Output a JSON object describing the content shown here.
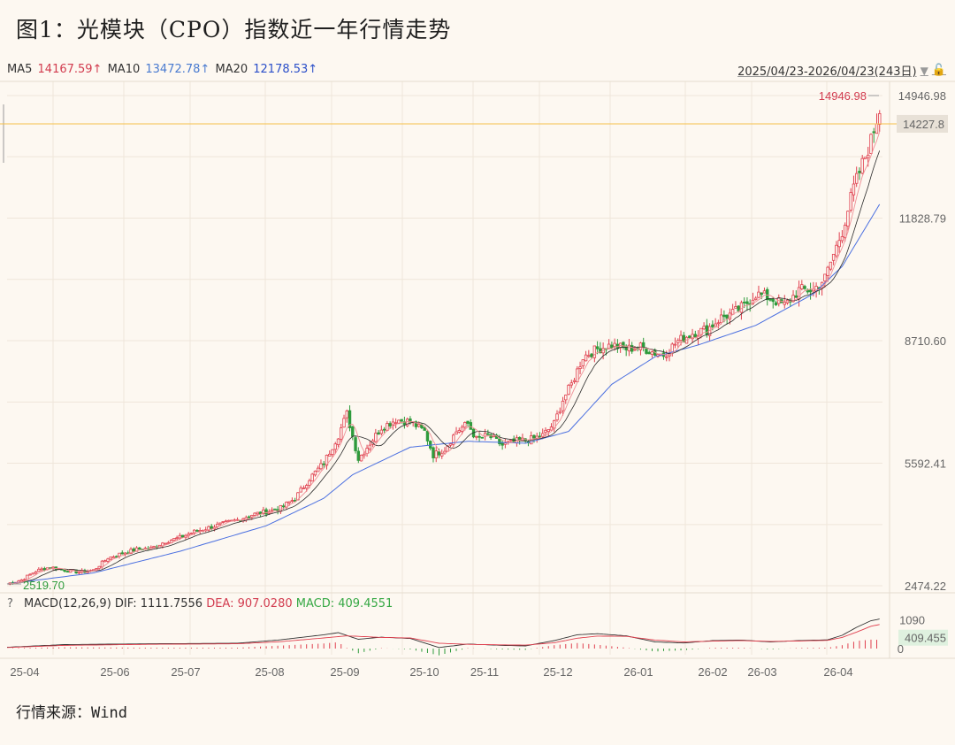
{
  "title": "图1：光模块（CPO）指数近一年行情走势",
  "legend": {
    "ma5_label": "MA5",
    "ma5_value": "14167.59↑",
    "ma10_label": "MA10",
    "ma10_value": "13472.78↑",
    "ma20_label": "MA20",
    "ma20_value": "12178.53↑"
  },
  "range_label": "2025/04/23-2026/04/23(243日)",
  "macd_legend": {
    "help": "?",
    "params": "MACD(12,26,9)",
    "dif": "DIF: 1111.7556",
    "dea": "DEA: 907.0280",
    "macd": "MACD: 409.4551"
  },
  "source": "行情来源：Wind",
  "colors": {
    "up": "#e0404f",
    "down": "#2e9b3c",
    "ma5": "#ef8f95",
    "ma10": "#2b2b2b",
    "ma20": "#4a6fe0",
    "current_line": "#f5c04a",
    "grid": "#efe6da",
    "dif_line": "#333333",
    "dea_line": "#e0404f"
  },
  "chart_data": {
    "type": "candlestick",
    "price_axis": {
      "ticks": [
        "14946.98",
        "11828.79",
        "8710.60",
        "5592.41",
        "2474.22"
      ],
      "range": [
        2474.22,
        14946.98
      ]
    },
    "x_ticks": [
      "25-04",
      "25-06",
      "25-07",
      "25-08",
      "25-09",
      "25-10",
      "25-11",
      "25-12",
      "26-01",
      "26-02",
      "26-03",
      "26-04"
    ],
    "high_label": "14946.98",
    "low_label": "2519.70",
    "current_label": "14227.8",
    "current_value": 14227.8,
    "close_path": [
      [
        0,
        2520
      ],
      [
        5,
        2620
      ],
      [
        10,
        2850
      ],
      [
        15,
        2950
      ],
      [
        20,
        2870
      ],
      [
        25,
        2820
      ],
      [
        30,
        2870
      ],
      [
        35,
        3180
      ],
      [
        40,
        3300
      ],
      [
        45,
        3400
      ],
      [
        50,
        3430
      ],
      [
        55,
        3600
      ],
      [
        60,
        3700
      ],
      [
        65,
        3850
      ],
      [
        70,
        3950
      ],
      [
        75,
        4050
      ],
      [
        80,
        4150
      ],
      [
        85,
        4280
      ],
      [
        90,
        4360
      ],
      [
        95,
        4450
      ],
      [
        100,
        4700
      ],
      [
        105,
        5200
      ],
      [
        110,
        5600
      ],
      [
        115,
        6300
      ],
      [
        118,
        6850
      ],
      [
        122,
        5700
      ],
      [
        126,
        6100
      ],
      [
        130,
        6500
      ],
      [
        135,
        6700
      ],
      [
        140,
        6650
      ],
      [
        145,
        6400
      ],
      [
        148,
        5800
      ],
      [
        152,
        5950
      ],
      [
        156,
        6400
      ],
      [
        160,
        6600
      ],
      [
        163,
        6200
      ],
      [
        167,
        6300
      ],
      [
        172,
        6050
      ],
      [
        177,
        6150
      ],
      [
        182,
        6200
      ],
      [
        186,
        6300
      ],
      [
        190,
        6600
      ],
      [
        193,
        7200
      ],
      [
        196,
        7600
      ],
      [
        200,
        8300
      ],
      [
        205,
        8500
      ],
      [
        210,
        8600
      ],
      [
        215,
        8500
      ],
      [
        220,
        8550
      ],
      [
        225,
        8400
      ],
      [
        228,
        8350
      ],
      [
        233,
        8700
      ],
      [
        238,
        8900
      ],
      [
        243,
        9000
      ],
      [
        248,
        9300
      ],
      [
        252,
        9400
      ],
      [
        256,
        9600
      ],
      [
        260,
        9900
      ],
      [
        265,
        9800
      ],
      [
        270,
        9600
      ],
      [
        275,
        10000
      ],
      [
        280,
        10000
      ],
      [
        284,
        10300
      ],
      [
        286,
        10700
      ],
      [
        290,
        11500
      ],
      [
        294,
        12600
      ],
      [
        297,
        13200
      ],
      [
        300,
        13800
      ],
      [
        303,
        14600
      ]
    ],
    "ma20_path": [
      [
        0,
        2520
      ],
      [
        30,
        2800
      ],
      [
        60,
        3350
      ],
      [
        90,
        4000
      ],
      [
        110,
        4700
      ],
      [
        120,
        5300
      ],
      [
        140,
        6000
      ],
      [
        160,
        6150
      ],
      [
        180,
        6100
      ],
      [
        195,
        6400
      ],
      [
        210,
        7600
      ],
      [
        225,
        8300
      ],
      [
        240,
        8600
      ],
      [
        260,
        9100
      ],
      [
        280,
        9900
      ],
      [
        290,
        10600
      ],
      [
        303,
        12180
      ]
    ],
    "macd": {
      "labels": [
        "1090",
        "409.455",
        "0"
      ],
      "dif_last": 1111.7556,
      "dea_last": 907.028,
      "macd_last": 409.4551,
      "range": [
        -300,
        1300
      ],
      "dif_path": [
        [
          0,
          50
        ],
        [
          20,
          150
        ],
        [
          50,
          180
        ],
        [
          80,
          200
        ],
        [
          95,
          330
        ],
        [
          110,
          520
        ],
        [
          115,
          600
        ],
        [
          122,
          350
        ],
        [
          130,
          430
        ],
        [
          140,
          380
        ],
        [
          150,
          40
        ],
        [
          160,
          170
        ],
        [
          172,
          120
        ],
        [
          180,
          100
        ],
        [
          190,
          300
        ],
        [
          198,
          520
        ],
        [
          205,
          560
        ],
        [
          215,
          480
        ],
        [
          225,
          250
        ],
        [
          235,
          210
        ],
        [
          245,
          300
        ],
        [
          255,
          320
        ],
        [
          265,
          250
        ],
        [
          275,
          300
        ],
        [
          285,
          330
        ],
        [
          290,
          500
        ],
        [
          295,
          800
        ],
        [
          300,
          1050
        ],
        [
          303,
          1112
        ]
      ],
      "dea_path": [
        [
          0,
          40
        ],
        [
          20,
          120
        ],
        [
          50,
          160
        ],
        [
          80,
          180
        ],
        [
          95,
          260
        ],
        [
          110,
          400
        ],
        [
          118,
          480
        ],
        [
          130,
          420
        ],
        [
          140,
          400
        ],
        [
          150,
          200
        ],
        [
          160,
          160
        ],
        [
          172,
          140
        ],
        [
          180,
          130
        ],
        [
          190,
          220
        ],
        [
          198,
          390
        ],
        [
          205,
          470
        ],
        [
          215,
          460
        ],
        [
          225,
          320
        ],
        [
          235,
          250
        ],
        [
          245,
          280
        ],
        [
          255,
          300
        ],
        [
          265,
          270
        ],
        [
          275,
          285
        ],
        [
          285,
          310
        ],
        [
          290,
          420
        ],
        [
          295,
          620
        ],
        [
          300,
          840
        ],
        [
          303,
          907
        ]
      ]
    }
  }
}
